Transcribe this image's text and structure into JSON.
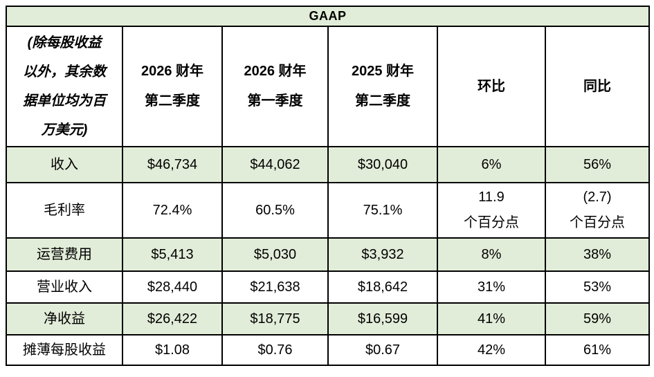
{
  "title": "GAAP",
  "colors": {
    "band_green": "#e2edd9",
    "border": "#000000",
    "background": "#ffffff",
    "text": "#000000"
  },
  "table": {
    "note": "(除每股收益\n以外，其余数\n据单位均为百\n万美元)",
    "columns": [
      "2026 财年\n第二季度",
      "2026 财年\n第一季度",
      "2025 财年\n第二季度",
      "环比",
      "同比"
    ],
    "rows": [
      {
        "label": "收入",
        "shaded": true,
        "values": [
          "$46,734",
          "$44,062",
          "$30,040",
          "6%",
          "56%"
        ]
      },
      {
        "label": "毛利率",
        "shaded": false,
        "values": [
          "72.4%",
          "60.5%",
          "75.1%",
          "11.9\n个百分点",
          "(2.7)\n个百分点"
        ]
      },
      {
        "label": "运营费用",
        "shaded": true,
        "values": [
          "$5,413",
          "$5,030",
          "$3,932",
          "8%",
          "38%"
        ]
      },
      {
        "label": "营业收入",
        "shaded": false,
        "values": [
          "$28,440",
          "$21,638",
          "$18,642",
          "31%",
          "53%"
        ]
      },
      {
        "label": "净收益",
        "shaded": true,
        "values": [
          "$26,422",
          "$18,775",
          "$16,599",
          "41%",
          "59%"
        ]
      },
      {
        "label": "摊薄每股收益",
        "shaded": false,
        "values": [
          "$1.08",
          "$0.76",
          "$0.67",
          "42%",
          "61%"
        ]
      }
    ]
  }
}
